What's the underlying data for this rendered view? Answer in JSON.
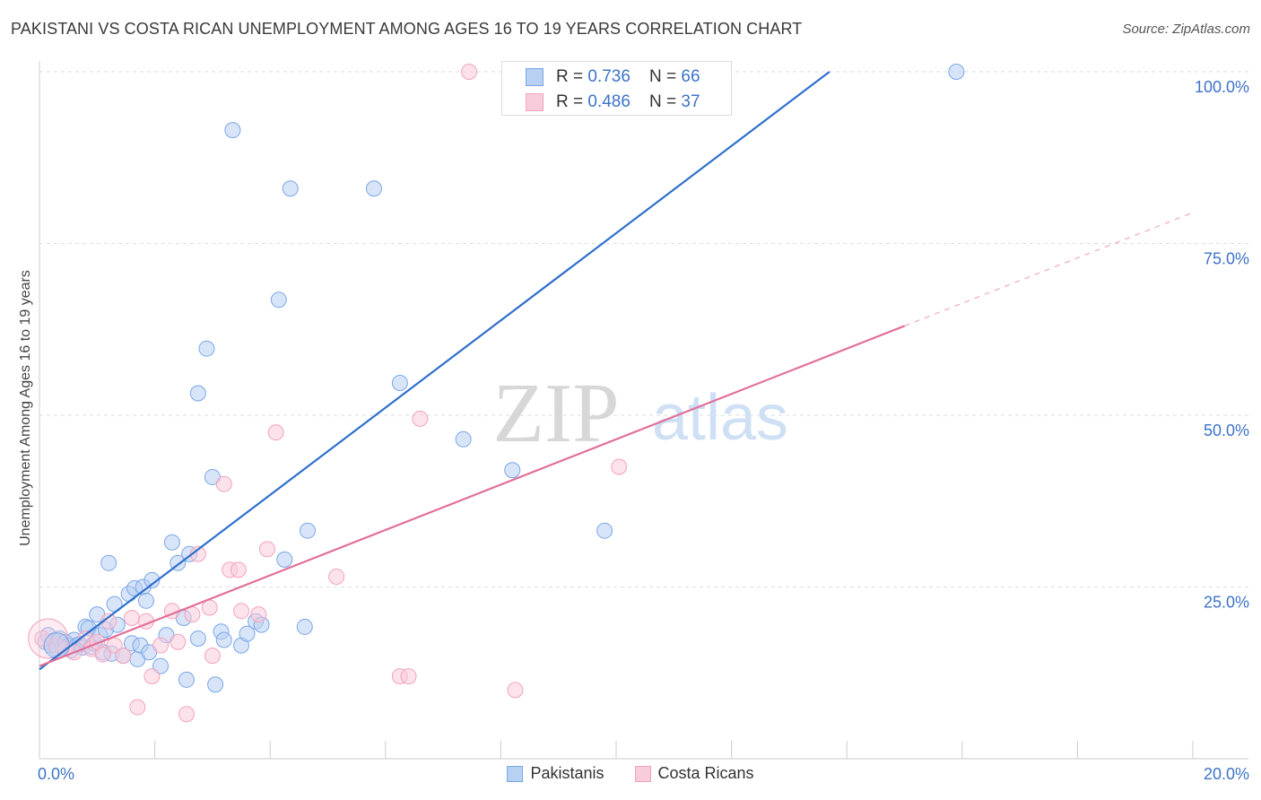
{
  "title": "PAKISTANI VS COSTA RICAN UNEMPLOYMENT AMONG AGES 16 TO 19 YEARS CORRELATION CHART",
  "source": "Source: ZipAtlas.com",
  "watermark": {
    "zip": "ZIP",
    "atlas": "atlas"
  },
  "stats": [
    {
      "r_label": "R = ",
      "r": "0.736",
      "n_label": "N = ",
      "n": "66",
      "color": "#7aa7e8"
    },
    {
      "r_label": "R = ",
      "r": "0.486",
      "n_label": "N = ",
      "n": "37",
      "color": "#f3a3bd"
    }
  ],
  "legend": [
    {
      "label": "Pakistanis",
      "fill": "#b8d0f2",
      "stroke": "#7aa7e8"
    },
    {
      "label": "Costa Ricans",
      "fill": "#f9ccdb",
      "stroke": "#f3a3bd"
    }
  ],
  "chart_data": {
    "type": "scatter",
    "title": "PAKISTANI VS COSTA RICAN UNEMPLOYMENT AMONG AGES 16 TO 19 YEARS CORRELATION CHART",
    "xlabel": "",
    "ylabel": "Unemployment Among Ages 16 to 19 years",
    "xlim": [
      0,
      20
    ],
    "ylim": [
      0,
      100
    ],
    "x_tick_labels": [
      "0.0%",
      "20.0%"
    ],
    "y_ticks": [
      25,
      50,
      75,
      100
    ],
    "y_tick_labels": [
      "25.0%",
      "50.0%",
      "75.0%",
      "100.0%"
    ],
    "grid": true,
    "series": [
      {
        "name": "Pakistanis",
        "color": "#7aa7e8",
        "line_color": "#2f6fcc",
        "trend": {
          "x0": 0.0,
          "y0": 13.0,
          "x1": 13.7,
          "y1": 100.0
        },
        "points": [
          [
            0.1,
            17.0
          ],
          [
            0.15,
            18.0
          ],
          [
            0.2,
            16.5
          ],
          [
            0.25,
            17.2
          ],
          [
            0.3,
            16.0
          ],
          [
            0.35,
            17.5
          ],
          [
            0.4,
            16.2
          ],
          [
            0.45,
            17.0
          ],
          [
            0.5,
            16.5
          ],
          [
            0.55,
            15.8
          ],
          [
            0.6,
            17.3
          ],
          [
            0.65,
            16.5
          ],
          [
            0.7,
            16.7
          ],
          [
            0.75,
            16.2
          ],
          [
            0.8,
            19.2
          ],
          [
            0.85,
            19.0
          ],
          [
            0.9,
            16.3
          ],
          [
            0.95,
            16.8
          ],
          [
            1.0,
            21.0
          ],
          [
            1.05,
            18.0
          ],
          [
            1.1,
            15.5
          ],
          [
            1.15,
            18.8
          ],
          [
            1.2,
            28.5
          ],
          [
            1.25,
            15.3
          ],
          [
            1.3,
            22.5
          ],
          [
            1.35,
            19.5
          ],
          [
            1.45,
            15.0
          ],
          [
            1.55,
            24.0
          ],
          [
            1.6,
            16.8
          ],
          [
            1.65,
            24.8
          ],
          [
            1.7,
            14.5
          ],
          [
            1.75,
            16.5
          ],
          [
            1.8,
            25.0
          ],
          [
            1.85,
            23.0
          ],
          [
            1.9,
            15.5
          ],
          [
            1.95,
            26.0
          ],
          [
            2.1,
            13.5
          ],
          [
            2.2,
            18.0
          ],
          [
            2.3,
            31.5
          ],
          [
            2.4,
            28.5
          ],
          [
            2.5,
            20.5
          ],
          [
            2.55,
            11.5
          ],
          [
            2.6,
            29.8
          ],
          [
            2.75,
            17.5
          ],
          [
            2.75,
            53.2
          ],
          [
            2.9,
            59.7
          ],
          [
            3.0,
            41.0
          ],
          [
            3.05,
            10.8
          ],
          [
            3.15,
            18.5
          ],
          [
            3.2,
            17.3
          ],
          [
            3.35,
            91.5
          ],
          [
            3.5,
            16.5
          ],
          [
            3.6,
            18.2
          ],
          [
            3.75,
            20.0
          ],
          [
            3.85,
            19.5
          ],
          [
            4.15,
            66.8
          ],
          [
            4.25,
            29.0
          ],
          [
            4.35,
            83.0
          ],
          [
            4.6,
            19.2
          ],
          [
            4.65,
            33.2
          ],
          [
            5.8,
            83.0
          ],
          [
            6.25,
            54.7
          ],
          [
            7.35,
            46.5
          ],
          [
            8.2,
            42.0
          ],
          [
            9.8,
            33.2
          ],
          [
            15.9,
            100.0
          ]
        ]
      },
      {
        "name": "Costa Ricans",
        "color": "#f3a3bd",
        "line_color": "#e2709a",
        "trend": {
          "x0": 0.0,
          "y0": 13.5,
          "x1": 15.0,
          "y1": 63.0
        },
        "trend_extension": {
          "x0": 15.0,
          "y0": 63.0,
          "x1": 20.0,
          "y1": 79.5
        },
        "points": [
          [
            0.05,
            17.5
          ],
          [
            0.3,
            16.5
          ],
          [
            0.45,
            16.0
          ],
          [
            0.6,
            15.5
          ],
          [
            0.8,
            17.5
          ],
          [
            0.9,
            16.0
          ],
          [
            1.0,
            17.0
          ],
          [
            1.1,
            15.2
          ],
          [
            1.2,
            20.0
          ],
          [
            1.3,
            16.5
          ],
          [
            1.45,
            15.0
          ],
          [
            1.6,
            20.5
          ],
          [
            1.7,
            7.5
          ],
          [
            1.85,
            20.0
          ],
          [
            1.95,
            12.0
          ],
          [
            2.1,
            16.5
          ],
          [
            2.3,
            21.5
          ],
          [
            2.4,
            17.0
          ],
          [
            2.55,
            6.5
          ],
          [
            2.65,
            21.0
          ],
          [
            2.75,
            29.8
          ],
          [
            2.95,
            22.0
          ],
          [
            3.0,
            15.0
          ],
          [
            3.2,
            40.0
          ],
          [
            3.3,
            27.5
          ],
          [
            3.45,
            27.5
          ],
          [
            3.5,
            21.5
          ],
          [
            3.8,
            21.0
          ],
          [
            3.95,
            30.5
          ],
          [
            4.1,
            47.5
          ],
          [
            5.15,
            26.5
          ],
          [
            6.25,
            12.0
          ],
          [
            6.4,
            12.0
          ],
          [
            6.6,
            49.5
          ],
          [
            7.45,
            100.0
          ],
          [
            8.25,
            10.0
          ],
          [
            10.05,
            42.5
          ]
        ]
      }
    ]
  }
}
